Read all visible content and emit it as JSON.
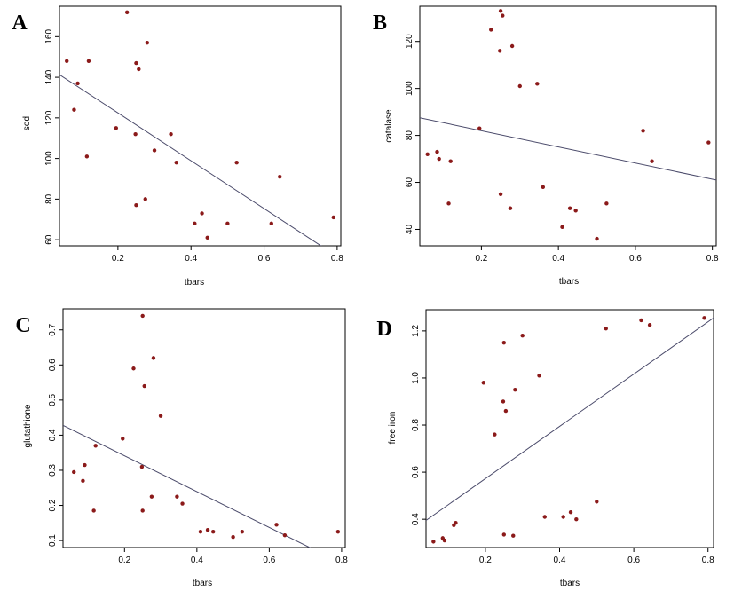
{
  "chart_data": [
    {
      "type": "scatter",
      "panel_label": "A",
      "xlabel": "tbars",
      "ylabel": "sod",
      "xlim": [
        0.04,
        0.81
      ],
      "ylim": [
        57,
        175
      ],
      "xticks": [
        0.2,
        0.4,
        0.6,
        0.8
      ],
      "xtick_labels": [
        "0.2",
        "0.4",
        "0.6",
        "0.8"
      ],
      "yticks": [
        60,
        80,
        100,
        120,
        140,
        160
      ],
      "ytick_labels": [
        "60",
        "80",
        "100",
        "120",
        "140",
        "160"
      ],
      "grid": false,
      "point_color": "#8b1a1a",
      "line_color": "#4a4a6a",
      "x": [
        0.06,
        0.08,
        0.09,
        0.115,
        0.12,
        0.195,
        0.225,
        0.248,
        0.25,
        0.25,
        0.257,
        0.275,
        0.28,
        0.3,
        0.345,
        0.36,
        0.41,
        0.43,
        0.445,
        0.5,
        0.525,
        0.62,
        0.643,
        0.79
      ],
      "y": [
        148,
        124,
        137,
        101,
        148,
        115,
        172,
        112,
        77,
        147,
        144,
        80,
        157,
        104,
        112,
        98,
        68,
        73,
        61,
        68,
        98,
        68,
        91,
        71
      ],
      "fit_line": [
        [
          0.04,
          141.3
        ],
        [
          0.81,
          50.6
        ]
      ]
    },
    {
      "type": "scatter",
      "panel_label": "B",
      "xlabel": "tbars",
      "ylabel": "catalase",
      "xlim": [
        0.04,
        0.81
      ],
      "ylim": [
        33,
        135
      ],
      "xticks": [
        0.2,
        0.4,
        0.6,
        0.8
      ],
      "xtick_labels": [
        "0.2",
        "0.4",
        "0.6",
        "0.8"
      ],
      "yticks": [
        40,
        60,
        80,
        100,
        120
      ],
      "ytick_labels": [
        "40",
        "60",
        "80",
        "100",
        "120"
      ],
      "grid": false,
      "point_color": "#8b1a1a",
      "line_color": "#4a4a6a",
      "x": [
        0.06,
        0.085,
        0.09,
        0.115,
        0.12,
        0.195,
        0.225,
        0.248,
        0.25,
        0.25,
        0.255,
        0.275,
        0.28,
        0.3,
        0.345,
        0.36,
        0.41,
        0.43,
        0.445,
        0.5,
        0.525,
        0.62,
        0.643,
        0.79
      ],
      "y": [
        72,
        73,
        70,
        51,
        69,
        83,
        125,
        116,
        55,
        133,
        131,
        49,
        118,
        101,
        102,
        58,
        41,
        49,
        48,
        36,
        51,
        82,
        69,
        77
      ],
      "fit_line": [
        [
          0.04,
          87.5
        ],
        [
          0.81,
          61.0
        ]
      ]
    },
    {
      "type": "scatter",
      "panel_label": "C",
      "xlabel": "tbars",
      "ylabel": "glutathione",
      "xlim": [
        0.03,
        0.81
      ],
      "ylim": [
        0.08,
        0.76
      ],
      "xticks": [
        0.2,
        0.4,
        0.6,
        0.8
      ],
      "xtick_labels": [
        "0.2",
        "0.4",
        "0.6",
        "0.8"
      ],
      "yticks": [
        0.1,
        0.2,
        0.3,
        0.4,
        0.5,
        0.6,
        0.7
      ],
      "ytick_labels": [
        "0.1",
        "0.2",
        "0.3",
        "0.4",
        "0.5",
        "0.6",
        "0.7"
      ],
      "grid": false,
      "point_color": "#8b1a1a",
      "line_color": "#4a4a6a",
      "x": [
        0.06,
        0.085,
        0.09,
        0.115,
        0.12,
        0.195,
        0.225,
        0.248,
        0.25,
        0.25,
        0.255,
        0.275,
        0.28,
        0.3,
        0.345,
        0.36,
        0.41,
        0.43,
        0.445,
        0.5,
        0.525,
        0.62,
        0.643,
        0.79
      ],
      "y": [
        0.295,
        0.27,
        0.315,
        0.185,
        0.37,
        0.39,
        0.59,
        0.31,
        0.185,
        0.74,
        0.54,
        0.225,
        0.62,
        0.455,
        0.225,
        0.205,
        0.125,
        0.13,
        0.125,
        0.11,
        0.125,
        0.145,
        0.115,
        0.125
      ],
      "fit_line": [
        [
          0.03,
          0.428
        ],
        [
          0.81,
          0.03
        ]
      ]
    },
    {
      "type": "scatter",
      "panel_label": "D",
      "xlabel": "tbars",
      "ylabel": "free iron",
      "xlim": [
        0.04,
        0.815
      ],
      "ylim": [
        0.28,
        1.29
      ],
      "xticks": [
        0.2,
        0.4,
        0.6,
        0.8
      ],
      "xtick_labels": [
        "0.2",
        "0.4",
        "0.6",
        "0.8"
      ],
      "yticks": [
        0.4,
        0.6,
        0.8,
        1.0,
        1.2
      ],
      "ytick_labels": [
        "0.4",
        "0.6",
        "0.8",
        "1.0",
        "1.2"
      ],
      "grid": false,
      "point_color": "#8b1a1a",
      "line_color": "#4a4a6a",
      "x": [
        0.06,
        0.085,
        0.09,
        0.115,
        0.12,
        0.195,
        0.225,
        0.248,
        0.25,
        0.25,
        0.255,
        0.275,
        0.28,
        0.3,
        0.345,
        0.36,
        0.41,
        0.43,
        0.445,
        0.5,
        0.525,
        0.62,
        0.643,
        0.79
      ],
      "y": [
        0.305,
        0.32,
        0.31,
        0.375,
        0.385,
        0.98,
        0.76,
        0.9,
        0.335,
        1.15,
        0.86,
        0.33,
        0.95,
        1.18,
        1.01,
        0.41,
        0.41,
        0.43,
        0.4,
        0.475,
        1.21,
        1.245,
        1.225,
        1.255
      ],
      "fit_line": [
        [
          0.04,
          0.395
        ],
        [
          0.815,
          1.255
        ]
      ]
    }
  ]
}
